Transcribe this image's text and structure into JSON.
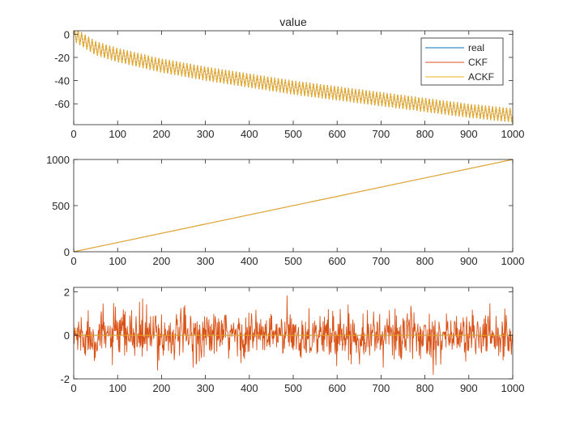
{
  "figure": {
    "title": "value"
  },
  "chart_data": [
    {
      "type": "line",
      "title": "value",
      "xlabel": "",
      "ylabel": "",
      "xlim": [
        0,
        1000
      ],
      "ylim": [
        -78,
        3
      ],
      "xticks": [
        0,
        100,
        200,
        300,
        400,
        500,
        600,
        700,
        800,
        900,
        1000
      ],
      "yticks": [
        0,
        -20,
        -40,
        -60
      ],
      "grid": false,
      "legend": {
        "position": "top-right",
        "entries": [
          "real",
          "CKF",
          "ACKF"
        ]
      },
      "series": [
        {
          "name": "real",
          "color": "#0072BD",
          "description_points": {
            "x": [
              0,
              50,
              100,
              200,
              300,
              400,
              500,
              600,
              700,
              800,
              900,
              1000
            ],
            "y": [
              0,
              -12,
              -18,
              -27,
              -34,
              -40,
              -46,
              -51,
              -56,
              -61,
              -66,
              -70
            ]
          },
          "oscillation_amplitude": 6,
          "oscillation_period": 8
        },
        {
          "name": "CKF",
          "color": "#D95319",
          "description_points": {
            "x": [
              0,
              50,
              100,
              200,
              300,
              400,
              500,
              600,
              700,
              800,
              900,
              1000
            ],
            "y": [
              0,
              -12,
              -18,
              -27,
              -34,
              -40,
              -46,
              -51,
              -56,
              -61,
              -66,
              -70
            ]
          },
          "oscillation_amplitude": 6,
          "oscillation_period": 8
        },
        {
          "name": "ACKF",
          "color": "#EDB120",
          "description_points": {
            "x": [
              0,
              50,
              100,
              200,
              300,
              400,
              500,
              600,
              700,
              800,
              900,
              1000
            ],
            "y": [
              0,
              -12,
              -18,
              -27,
              -34,
              -40,
              -46,
              -51,
              -56,
              -61,
              -66,
              -70
            ]
          },
          "oscillation_amplitude": 6,
          "oscillation_period": 8
        }
      ]
    },
    {
      "type": "line",
      "title": "",
      "xlim": [
        0,
        1000
      ],
      "ylim": [
        0,
        1000
      ],
      "xticks": [
        0,
        100,
        200,
        300,
        400,
        500,
        600,
        700,
        800,
        900,
        1000
      ],
      "yticks": [
        0,
        500,
        1000
      ],
      "grid": false,
      "series": [
        {
          "name": "real",
          "color": "#0072BD",
          "x": [
            0,
            1000
          ],
          "y": [
            0,
            1000
          ]
        },
        {
          "name": "CKF",
          "color": "#D95319",
          "x": [
            0,
            1000
          ],
          "y": [
            0,
            1000
          ]
        },
        {
          "name": "ACKF",
          "color": "#EDB120",
          "x": [
            0,
            1000
          ],
          "y": [
            0,
            1000
          ]
        }
      ]
    },
    {
      "type": "line",
      "title": "",
      "xlim": [
        0,
        1000
      ],
      "ylim": [
        -2,
        2.2
      ],
      "xticks": [
        0,
        100,
        200,
        300,
        400,
        500,
        600,
        700,
        800,
        900,
        1000
      ],
      "yticks": [
        -2,
        0,
        2
      ],
      "grid": false,
      "series": [
        {
          "name": "real",
          "color": "#0072BD",
          "x": [
            0,
            1000
          ],
          "y": [
            0,
            0
          ]
        },
        {
          "name": "CKF",
          "color": "#D95319",
          "noise_std": 0.55,
          "noise_max": 2.2,
          "noise_min": -2.0
        },
        {
          "name": "ACKF",
          "color": "#EDB120",
          "x": [
            0,
            15,
            1000
          ],
          "y": [
            0.3,
            0,
            0
          ]
        }
      ]
    }
  ]
}
